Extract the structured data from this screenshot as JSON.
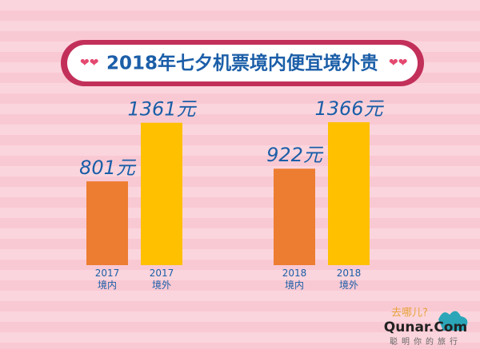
{
  "chart_data": {
    "type": "bar",
    "title": "2018年七夕机票境内便宜境外贵",
    "categories": [
      "2017\n境内",
      "2017\n境外",
      "2018\n境内",
      "2018\n境外"
    ],
    "values": [
      801,
      1361,
      922,
      1366
    ],
    "value_labels": [
      "801元",
      "1361元",
      "922元",
      "1366元"
    ],
    "colors": [
      "#ed7d31",
      "#ffc000",
      "#ed7d31",
      "#ffc000"
    ]
  },
  "logo": {
    "name": "去哪儿?",
    "brand": "Qunar.Com",
    "slogan": "聪明你的旅行"
  }
}
